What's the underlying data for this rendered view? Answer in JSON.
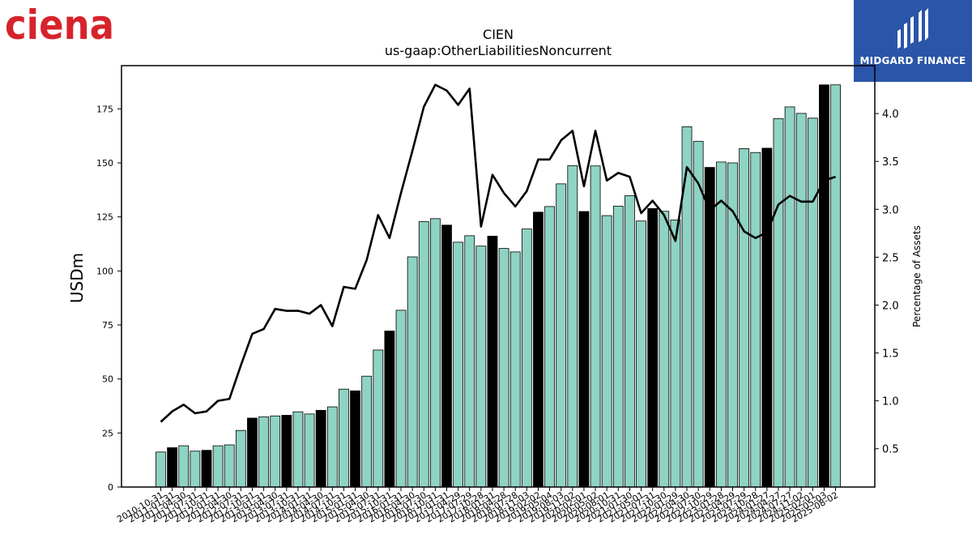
{
  "logos": {
    "left": {
      "text": "ciena",
      "color": "#d6232b"
    },
    "right": {
      "text": "MIDGARD FINANCE",
      "bg": "#2b55a8"
    }
  },
  "chart_data": {
    "type": "bar",
    "title": "CIEN",
    "subtitle": "us-gaap:OtherLiabilitiesNoncurrent",
    "ylabel": "USDm",
    "y2label": "Percentage of Assets",
    "ylim": [
      0,
      195
    ],
    "y2lim": [
      0.1,
      4.5
    ],
    "yticks": [
      0,
      25,
      50,
      75,
      100,
      125,
      150,
      175
    ],
    "y2ticks": [
      0.5,
      1.0,
      1.5,
      2.0,
      2.5,
      3.0,
      3.5,
      4.0
    ],
    "colors": {
      "bar": "#8ed3c4",
      "bar_highlight": "#000000",
      "line": "#000000"
    },
    "legend": "none",
    "grid": false,
    "categories": [
      "2010-10-31",
      "2011-01-31",
      "2011-04-30",
      "2011-07-31",
      "2011-10-31",
      "2012-01-31",
      "2012-04-30",
      "2012-07-31",
      "2012-10-31",
      "2013-01-31",
      "2013-04-30",
      "2013-07-31",
      "2013-10-31",
      "2014-01-31",
      "2014-04-30",
      "2014-07-31",
      "2014-10-31",
      "2015-01-31",
      "2015-04-30",
      "2015-07-31",
      "2015-10-31",
      "2016-01-31",
      "2016-04-30",
      "2016-07-30",
      "2016-10-31",
      "2017-01-31",
      "2017-04-29",
      "2017-07-29",
      "2017-10-28",
      "2018-01-31",
      "2018-04-28",
      "2018-07-28",
      "2018-11-03",
      "2019-02-02",
      "2019-05-04",
      "2019-08-03",
      "2019-11-02",
      "2020-02-01",
      "2020-05-02",
      "2020-08-01",
      "2020-10-31",
      "2021-01-30",
      "2021-05-01",
      "2021-07-31",
      "2021-10-30",
      "2022-01-29",
      "2022-04-30",
      "2022-07-30",
      "2022-10-29",
      "2023-01-28",
      "2023-04-29",
      "2023-07-29",
      "2023-10-28",
      "2024-01-27",
      "2024-04-27",
      "2024-07-27",
      "2024-11-02",
      "2025-02-01",
      "2025-05-03",
      "2025-08-02"
    ],
    "highlight": [
      1,
      4,
      8,
      11,
      14,
      17,
      20,
      25,
      29,
      33,
      37,
      43,
      48,
      53,
      58
    ],
    "values": [
      16.2,
      18.2,
      19.1,
      16.6,
      17.0,
      19.1,
      19.5,
      26.2,
      31.9,
      32.5,
      32.9,
      33.2,
      34.8,
      33.8,
      35.5,
      37.1,
      45.3,
      44.5,
      51.3,
      63.4,
      72.2,
      81.8,
      106.5,
      122.8,
      124.2,
      121.2,
      113.3,
      116.3,
      111.5,
      116.1,
      110.4,
      108.8,
      119.4,
      127.2,
      129.8,
      140.3,
      148.7,
      127.5,
      148.6,
      125.6,
      130.0,
      134.8,
      123.1,
      128.9,
      127.6,
      123.6,
      166.7,
      160.0,
      147.9,
      150.4,
      150.0,
      156.6,
      154.8,
      156.8,
      170.5,
      175.9,
      172.9,
      170.7,
      186.1,
      186.1
    ],
    "pct": [
      0.78,
      0.89,
      0.96,
      0.87,
      0.89,
      1.0,
      1.02,
      1.37,
      1.7,
      1.75,
      1.96,
      1.94,
      1.94,
      1.91,
      2.0,
      1.78,
      2.19,
      2.17,
      2.47,
      2.94,
      2.7,
      3.17,
      3.61,
      4.07,
      4.3,
      4.24,
      4.09,
      4.26,
      2.82,
      3.36,
      3.17,
      3.03,
      3.19,
      3.52,
      3.52,
      3.72,
      3.82,
      3.24,
      3.82,
      3.3,
      3.38,
      3.34,
      2.96,
      3.09,
      2.94,
      2.67,
      3.44,
      3.27,
      2.99,
      3.09,
      2.98,
      2.77,
      2.7,
      2.76,
      3.05,
      3.14,
      3.08,
      3.08,
      3.3,
      3.34
    ]
  }
}
